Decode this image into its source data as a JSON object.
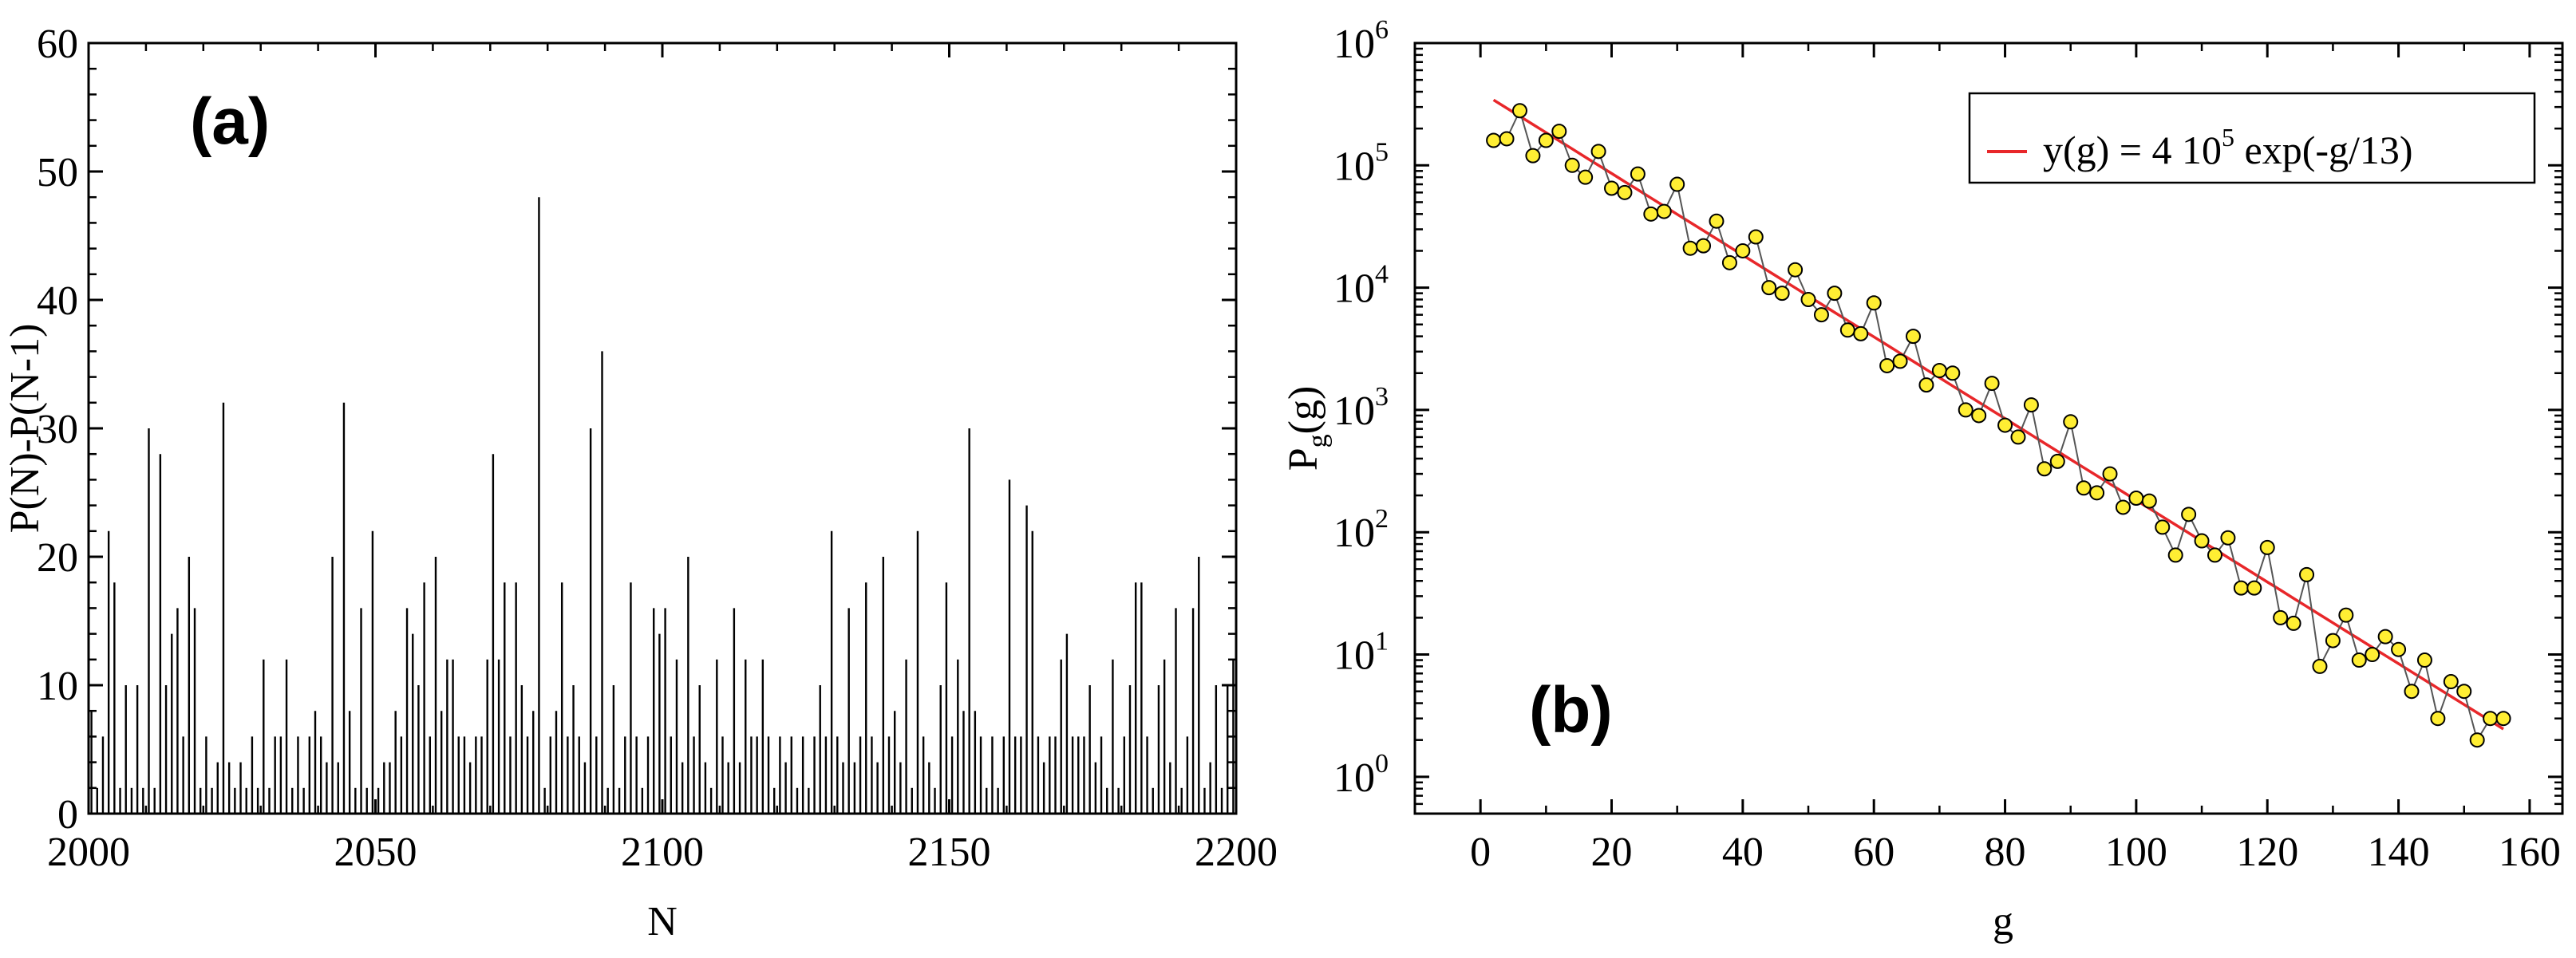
{
  "figure": {
    "panels": [
      "(a)",
      "(b)"
    ]
  },
  "chart_data": [
    {
      "type": "bar",
      "panel_label": "(a)",
      "xlabel": "N",
      "ylabel": "P(N)-P(N-1)",
      "xlim": [
        2000,
        2200
      ],
      "ylim": [
        0,
        60
      ],
      "xticks": [
        2000,
        2050,
        2100,
        2150,
        2200
      ],
      "yticks": [
        0,
        10,
        20,
        30,
        40,
        50,
        60
      ],
      "grid": false,
      "color": "#000000",
      "x": [
        2000,
        2001,
        2002,
        2003,
        2004,
        2005,
        2006,
        2007,
        2008,
        2009,
        2010,
        2011,
        2012,
        2013,
        2014,
        2015,
        2016,
        2017,
        2018,
        2019,
        2020,
        2021,
        2022,
        2023,
        2024,
        2025,
        2026,
        2027,
        2028,
        2029,
        2030,
        2031,
        2032,
        2033,
        2034,
        2035,
        2036,
        2037,
        2038,
        2039,
        2040,
        2041,
        2042,
        2043,
        2044,
        2045,
        2046,
        2047,
        2048,
        2049,
        2050,
        2051,
        2052,
        2053,
        2054,
        2055,
        2056,
        2057,
        2058,
        2059,
        2060,
        2061,
        2062,
        2063,
        2064,
        2065,
        2066,
        2067,
        2068,
        2069,
        2070,
        2071,
        2072,
        2073,
        2074,
        2075,
        2076,
        2077,
        2078,
        2079,
        2080,
        2081,
        2082,
        2083,
        2084,
        2085,
        2086,
        2087,
        2088,
        2089,
        2090,
        2091,
        2092,
        2093,
        2094,
        2095,
        2096,
        2097,
        2098,
        2099,
        2100,
        2101,
        2102,
        2103,
        2104,
        2105,
        2106,
        2107,
        2108,
        2109,
        2110,
        2111,
        2112,
        2113,
        2114,
        2115,
        2116,
        2117,
        2118,
        2119,
        2120,
        2121,
        2122,
        2123,
        2124,
        2125,
        2126,
        2127,
        2128,
        2129,
        2130,
        2131,
        2132,
        2133,
        2134,
        2135,
        2136,
        2137,
        2138,
        2139,
        2140,
        2141,
        2142,
        2143,
        2144,
        2145,
        2146,
        2147,
        2148,
        2149,
        2150,
        2151,
        2152,
        2153,
        2154,
        2155,
        2156,
        2157,
        2158,
        2159,
        2160,
        2161,
        2162,
        2163,
        2164,
        2165,
        2166,
        2167,
        2168,
        2169,
        2170,
        2171,
        2172,
        2173,
        2174,
        2175,
        2176,
        2177,
        2178,
        2179,
        2180,
        2181,
        2182,
        2183,
        2184,
        2185,
        2186,
        2187,
        2188,
        2189,
        2190,
        2191,
        2192,
        2193,
        2194,
        2195,
        2196,
        2197,
        2198,
        2199
      ],
      "values": [
        8,
        2,
        6,
        22,
        18,
        2,
        10,
        2,
        10,
        2,
        30,
        2,
        28,
        10,
        14,
        16,
        6,
        20,
        16,
        2,
        6,
        2,
        4,
        32,
        4,
        2,
        4,
        2,
        6,
        2,
        12,
        2,
        6,
        6,
        12,
        2,
        6,
        2,
        6,
        8,
        6,
        4,
        20,
        4,
        32,
        8,
        2,
        16,
        2,
        22,
        2,
        4,
        4,
        8,
        6,
        16,
        14,
        10,
        18,
        6,
        20,
        8,
        12,
        12,
        6,
        6,
        4,
        6,
        6,
        12,
        28,
        12,
        18,
        6,
        18,
        10,
        6,
        8,
        48,
        2,
        6,
        8,
        18,
        6,
        10,
        6,
        4,
        30,
        6,
        36,
        2,
        10,
        2,
        6,
        18,
        6,
        2,
        6,
        16,
        14,
        16,
        6,
        12,
        4,
        20,
        6,
        10,
        4,
        2,
        12,
        6,
        4,
        16,
        4,
        12,
        6,
        6,
        12,
        6,
        2,
        6,
        4,
        6,
        2,
        6,
        2,
        6,
        10,
        6,
        22,
        6,
        4,
        16,
        4,
        6,
        18,
        6,
        4,
        20,
        6,
        8,
        4,
        12,
        2,
        22,
        6,
        4,
        2,
        10,
        18,
        6,
        12,
        8,
        30,
        8,
        6,
        2,
        6,
        2,
        6,
        26,
        6,
        6,
        24,
        22,
        6,
        4,
        6,
        6,
        12,
        14,
        6,
        6,
        6,
        10,
        4,
        6,
        2,
        12,
        2,
        6,
        10,
        18,
        18,
        6,
        2,
        10,
        12,
        4,
        16,
        2,
        6,
        16,
        20,
        2,
        4,
        10,
        2,
        10,
        12
      ]
    },
    {
      "type": "scatter",
      "panel_label": "(b)",
      "xlabel": "g",
      "ylabel": "P",
      "ylabel_subscript": "g",
      "ylabel_suffix": "(g)",
      "xlim": [
        -10,
        165
      ],
      "ylim": [
        0.5,
        1000000
      ],
      "yscale": "log",
      "xticks": [
        0,
        20,
        40,
        60,
        80,
        100,
        120,
        140,
        160
      ],
      "yticks": [
        {
          "value": 1,
          "base": "10",
          "exp": "0"
        },
        {
          "value": 10,
          "base": "10",
          "exp": "1"
        },
        {
          "value": 100,
          "base": "10",
          "exp": "2"
        },
        {
          "value": 1000,
          "base": "10",
          "exp": "3"
        },
        {
          "value": 10000,
          "base": "10",
          "exp": "4"
        },
        {
          "value": 100000,
          "base": "10",
          "exp": "5"
        },
        {
          "value": 1000000,
          "base": "10",
          "exp": "6"
        }
      ],
      "grid": false,
      "legend": {
        "position": "top-right",
        "pre": "y(g) = 4 10",
        "sup": "5",
        "post": " exp(-g/13)"
      },
      "fit": {
        "a": 400000,
        "tau": 13,
        "x_range": [
          2,
          156
        ],
        "color": "#e8272a"
      },
      "series": [
        {
          "name": "P_g(g)",
          "marker_fill": "#ffee33",
          "marker_edge": "#000000",
          "line_color": "#555555",
          "x": [
            2,
            4,
            6,
            8,
            10,
            12,
            14,
            16,
            18,
            20,
            22,
            24,
            26,
            28,
            30,
            32,
            34,
            36,
            38,
            40,
            42,
            44,
            46,
            48,
            50,
            52,
            54,
            56,
            58,
            60,
            62,
            64,
            66,
            68,
            70,
            72,
            74,
            76,
            78,
            80,
            82,
            84,
            86,
            88,
            90,
            92,
            94,
            96,
            98,
            100,
            102,
            104,
            106,
            108,
            110,
            112,
            114,
            116,
            118,
            120,
            122,
            124,
            126,
            128,
            130,
            132,
            134,
            136,
            138,
            140,
            142,
            144,
            146,
            148,
            150,
            152,
            154,
            156
          ],
          "values": [
            160000,
            165000,
            280000,
            120000,
            160000,
            190000,
            100000,
            80000,
            130000,
            65000,
            60000,
            85000,
            40000,
            42000,
            70000,
            21000,
            22000,
            35000,
            16000,
            20000,
            26000,
            10000,
            9000,
            14000,
            8000,
            6000,
            9000,
            4500,
            4200,
            7500,
            2300,
            2500,
            4000,
            1600,
            2100,
            2000,
            1000,
            900,
            1650,
            750,
            600,
            1100,
            330,
            380,
            800,
            230,
            210,
            300,
            160,
            190,
            180,
            110,
            65,
            140,
            85,
            65,
            90,
            35,
            35,
            75,
            20,
            18,
            45,
            8,
            13,
            21,
            9,
            10,
            14,
            11,
            5,
            9,
            3,
            6,
            5,
            2,
            3,
            3
          ]
        }
      ]
    }
  ]
}
